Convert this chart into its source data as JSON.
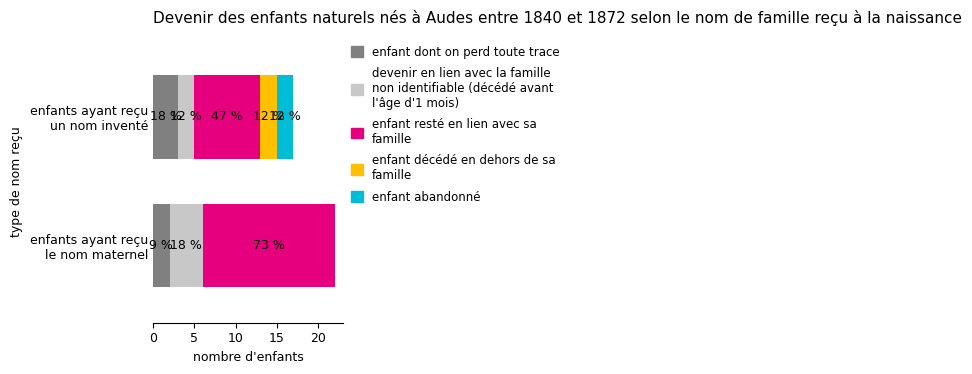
{
  "title": "Devenir des enfants naturels nés à Audes entre 1840 et 1872 selon le nom de famille reçu à la naissance",
  "ylabel": "type de nom reçu",
  "xlabel": "nombre d'enfants",
  "categories": [
    "enfants ayant reçu\nle nom maternel",
    "enfants ayant reçu\nun nom inventé"
  ],
  "series": [
    {
      "label": "enfant dont on perd toute trace",
      "color": "#808080",
      "values": [
        2,
        3
      ]
    },
    {
      "label": "devenir en lien avec la famille\nnon identifiable (décédé avant\nl'âge d'1 mois)",
      "color": "#c8c8c8",
      "values": [
        4,
        2
      ]
    },
    {
      "label": "enfant resté en lien avec sa\nfamille",
      "color": "#e6007e",
      "values": [
        16,
        8
      ]
    },
    {
      "label": "enfant décédé en dehors de sa\nfamille",
      "color": "#ffc000",
      "values": [
        0,
        2
      ]
    },
    {
      "label": "enfant abandonné",
      "color": "#00bcd4",
      "values": [
        0,
        2
      ]
    }
  ],
  "xlim": [
    0,
    23
  ],
  "xticks": [
    0,
    5,
    10,
    15,
    20
  ],
  "bar_height": 0.65,
  "figsize": [
    8.0,
    3.84
  ],
  "title_fontsize": 11,
  "axis_fontsize": 9,
  "label_fontsize": 9,
  "legend_fontsize": 8.5
}
